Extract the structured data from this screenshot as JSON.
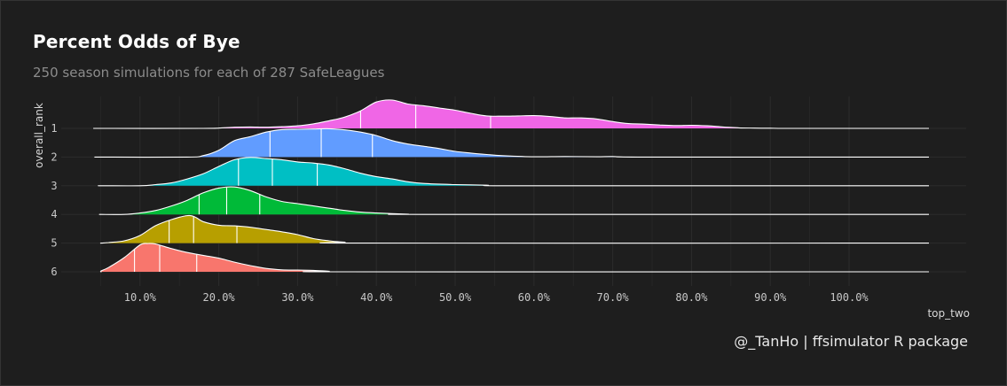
{
  "title": "Percent Odds of Bye",
  "subtitle": "250 season simulations for each of 287 SafeLeagues",
  "caption": "@_TanHo | ffsimulator R package",
  "chart_data": {
    "type": "ridgeline",
    "xlabel": "top_two",
    "ylabel": "overall_rank",
    "xlim": [
      0,
      1
    ],
    "x_ticks": [
      0.1,
      0.2,
      0.3,
      0.4,
      0.5,
      0.6,
      0.7,
      0.8,
      0.9,
      1.0
    ],
    "x_tick_labels": [
      "10.0%",
      "20.0%",
      "30.0%",
      "40.0%",
      "50.0%",
      "60.0%",
      "70.0%",
      "80.0%",
      "90.0%",
      "100.0%"
    ],
    "series": [
      {
        "name": "1",
        "color": "#f066e6",
        "quartiles": [
          0.38,
          0.45,
          0.545
        ],
        "density": [
          [
            0.0,
            0
          ],
          [
            0.18,
            0
          ],
          [
            0.2,
            0.01
          ],
          [
            0.22,
            0.04
          ],
          [
            0.24,
            0.05
          ],
          [
            0.26,
            0.04
          ],
          [
            0.28,
            0.06
          ],
          [
            0.3,
            0.09
          ],
          [
            0.32,
            0.16
          ],
          [
            0.34,
            0.27
          ],
          [
            0.36,
            0.4
          ],
          [
            0.38,
            0.62
          ],
          [
            0.4,
            0.93
          ],
          [
            0.42,
            1.0
          ],
          [
            0.44,
            0.86
          ],
          [
            0.46,
            0.8
          ],
          [
            0.48,
            0.72
          ],
          [
            0.5,
            0.64
          ],
          [
            0.52,
            0.53
          ],
          [
            0.54,
            0.44
          ],
          [
            0.56,
            0.43
          ],
          [
            0.58,
            0.44
          ],
          [
            0.6,
            0.45
          ],
          [
            0.62,
            0.42
          ],
          [
            0.64,
            0.37
          ],
          [
            0.66,
            0.37
          ],
          [
            0.68,
            0.33
          ],
          [
            0.7,
            0.24
          ],
          [
            0.72,
            0.17
          ],
          [
            0.74,
            0.15
          ],
          [
            0.76,
            0.12
          ],
          [
            0.78,
            0.1
          ],
          [
            0.8,
            0.11
          ],
          [
            0.82,
            0.09
          ],
          [
            0.84,
            0.05
          ],
          [
            0.86,
            0.02
          ],
          [
            0.88,
            0.01
          ],
          [
            0.9,
            0.005
          ],
          [
            0.92,
            0.0
          ],
          [
            1.0,
            0
          ]
        ]
      },
      {
        "name": "2",
        "color": "#619cff",
        "quartiles": [
          0.265,
          0.33,
          0.395
        ],
        "density": [
          [
            0.0,
            0
          ],
          [
            0.16,
            0
          ],
          [
            0.18,
            0.05
          ],
          [
            0.2,
            0.24
          ],
          [
            0.22,
            0.58
          ],
          [
            0.24,
            0.72
          ],
          [
            0.26,
            0.88
          ],
          [
            0.28,
            0.97
          ],
          [
            0.3,
            0.98
          ],
          [
            0.32,
            0.99
          ],
          [
            0.34,
            1.0
          ],
          [
            0.36,
            0.96
          ],
          [
            0.38,
            0.88
          ],
          [
            0.4,
            0.76
          ],
          [
            0.42,
            0.58
          ],
          [
            0.44,
            0.46
          ],
          [
            0.46,
            0.38
          ],
          [
            0.48,
            0.3
          ],
          [
            0.5,
            0.2
          ],
          [
            0.52,
            0.14
          ],
          [
            0.54,
            0.09
          ],
          [
            0.56,
            0.05
          ],
          [
            0.6,
            0.01
          ],
          [
            0.64,
            0.02
          ],
          [
            0.68,
            0.01
          ],
          [
            0.7,
            0.02
          ],
          [
            0.74,
            0.0
          ],
          [
            1.0,
            0
          ]
        ]
      },
      {
        "name": "3",
        "color": "#00bfc4",
        "quartiles": [
          0.225,
          0.268,
          0.325
        ],
        "density": [
          [
            0.0,
            0
          ],
          [
            0.1,
            0
          ],
          [
            0.12,
            0.04
          ],
          [
            0.14,
            0.1
          ],
          [
            0.16,
            0.24
          ],
          [
            0.18,
            0.42
          ],
          [
            0.2,
            0.68
          ],
          [
            0.22,
            0.92
          ],
          [
            0.24,
            1.0
          ],
          [
            0.26,
            0.96
          ],
          [
            0.28,
            0.92
          ],
          [
            0.3,
            0.84
          ],
          [
            0.32,
            0.8
          ],
          [
            0.34,
            0.73
          ],
          [
            0.36,
            0.6
          ],
          [
            0.38,
            0.44
          ],
          [
            0.4,
            0.32
          ],
          [
            0.42,
            0.24
          ],
          [
            0.44,
            0.14
          ],
          [
            0.46,
            0.08
          ],
          [
            0.5,
            0.04
          ],
          [
            0.54,
            0.02
          ],
          [
            0.58,
            0.0
          ],
          [
            1.0,
            0
          ]
        ]
      },
      {
        "name": "4",
        "color": "#00ba38",
        "quartiles": [
          0.175,
          0.21,
          0.252
        ],
        "density": [
          [
            0.0,
            0
          ],
          [
            0.08,
            0
          ],
          [
            0.1,
            0.05
          ],
          [
            0.12,
            0.14
          ],
          [
            0.14,
            0.3
          ],
          [
            0.16,
            0.5
          ],
          [
            0.18,
            0.76
          ],
          [
            0.2,
            0.93
          ],
          [
            0.22,
            0.97
          ],
          [
            0.24,
            0.84
          ],
          [
            0.26,
            0.62
          ],
          [
            0.28,
            0.46
          ],
          [
            0.3,
            0.38
          ],
          [
            0.32,
            0.3
          ],
          [
            0.34,
            0.22
          ],
          [
            0.36,
            0.14
          ],
          [
            0.38,
            0.08
          ],
          [
            0.4,
            0.05
          ],
          [
            0.44,
            0.01
          ],
          [
            0.46,
            0.0
          ],
          [
            1.0,
            0
          ]
        ]
      },
      {
        "name": "5",
        "color": "#b79f00",
        "quartiles": [
          0.137,
          0.168,
          0.223
        ],
        "density": [
          [
            0.0,
            0
          ],
          [
            0.05,
            0
          ],
          [
            0.06,
            0.02
          ],
          [
            0.08,
            0.08
          ],
          [
            0.1,
            0.27
          ],
          [
            0.12,
            0.62
          ],
          [
            0.14,
            0.83
          ],
          [
            0.16,
            0.97
          ],
          [
            0.17,
            0.92
          ],
          [
            0.18,
            0.76
          ],
          [
            0.2,
            0.63
          ],
          [
            0.22,
            0.61
          ],
          [
            0.24,
            0.56
          ],
          [
            0.26,
            0.48
          ],
          [
            0.28,
            0.4
          ],
          [
            0.3,
            0.3
          ],
          [
            0.32,
            0.16
          ],
          [
            0.34,
            0.08
          ],
          [
            0.36,
            0.03
          ],
          [
            0.38,
            0.0
          ],
          [
            1.0,
            0
          ]
        ]
      },
      {
        "name": "6",
        "color": "#f8766d",
        "quartiles": [
          0.093,
          0.125,
          0.172
        ],
        "density": [
          [
            0.0,
            0
          ],
          [
            0.02,
            0
          ],
          [
            0.04,
            0.03
          ],
          [
            0.06,
            0.15
          ],
          [
            0.08,
            0.5
          ],
          [
            0.1,
            0.95
          ],
          [
            0.11,
            1.0
          ],
          [
            0.12,
            0.98
          ],
          [
            0.14,
            0.82
          ],
          [
            0.16,
            0.68
          ],
          [
            0.18,
            0.58
          ],
          [
            0.2,
            0.48
          ],
          [
            0.22,
            0.34
          ],
          [
            0.24,
            0.22
          ],
          [
            0.26,
            0.12
          ],
          [
            0.28,
            0.07
          ],
          [
            0.3,
            0.06
          ],
          [
            0.32,
            0.05
          ],
          [
            0.34,
            0.02
          ],
          [
            0.36,
            0.0
          ],
          [
            1.0,
            0
          ]
        ]
      }
    ],
    "grid": true,
    "legend": "none"
  }
}
